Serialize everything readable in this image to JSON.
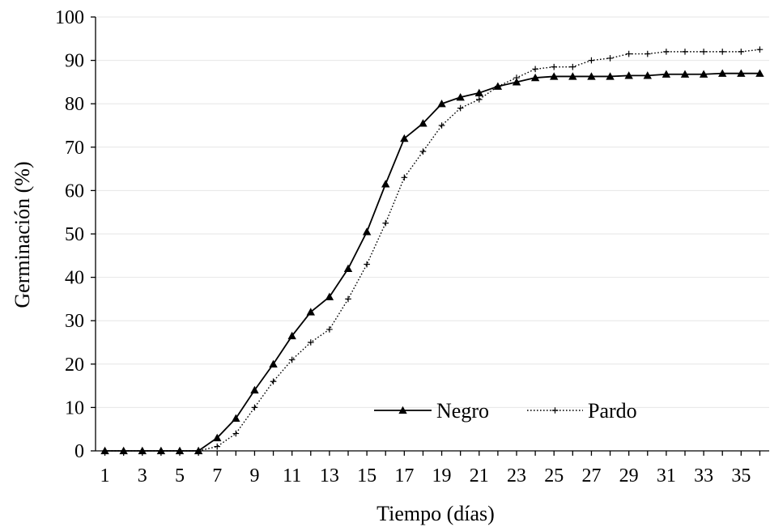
{
  "chart_data": {
    "type": "line",
    "title": "",
    "xlabel": "Tiempo (días)",
    "ylabel": "Germinación (%)",
    "xlim": [
      0.5,
      36.5
    ],
    "ylim": [
      0,
      100
    ],
    "x_tick_labels": [
      "1",
      "3",
      "5",
      "7",
      "9",
      "11",
      "13",
      "15",
      "17",
      "19",
      "21",
      "23",
      "25",
      "27",
      "29",
      "31",
      "33",
      "35"
    ],
    "y_tick_labels": [
      "0",
      "10",
      "20",
      "30",
      "40",
      "50",
      "60",
      "70",
      "80",
      "90",
      "100"
    ],
    "grid": true,
    "legend_position": "bottom-right",
    "x": [
      1,
      2,
      3,
      4,
      5,
      6,
      7,
      8,
      9,
      10,
      11,
      12,
      13,
      14,
      15,
      16,
      17,
      18,
      19,
      20,
      21,
      22,
      23,
      24,
      25,
      26,
      27,
      28,
      29,
      30,
      31,
      32,
      33,
      34,
      35,
      36
    ],
    "series": [
      {
        "name": "Negro",
        "marker": "triangle",
        "line": "solid",
        "color": "#000000",
        "values": [
          0,
          0,
          0,
          0,
          0,
          0,
          3,
          7.5,
          14,
          20,
          26.5,
          32,
          35.5,
          42,
          50.5,
          61.5,
          72,
          75.5,
          80,
          81.5,
          82.5,
          84,
          85,
          86,
          86.3,
          86.3,
          86.3,
          86.3,
          86.5,
          86.5,
          86.8,
          86.8,
          86.8,
          87,
          87,
          87
        ]
      },
      {
        "name": "Pardo",
        "marker": "plus",
        "line": "dotted",
        "color": "#000000",
        "values": [
          0,
          0,
          0,
          0,
          0,
          0,
          1,
          4,
          10,
          16,
          21,
          25,
          28,
          35,
          43,
          52.5,
          63,
          69,
          75,
          79,
          81,
          84,
          86,
          88,
          88.5,
          88.5,
          90,
          90.5,
          91.5,
          91.5,
          92,
          92,
          92,
          92,
          92,
          92.5
        ]
      }
    ]
  }
}
